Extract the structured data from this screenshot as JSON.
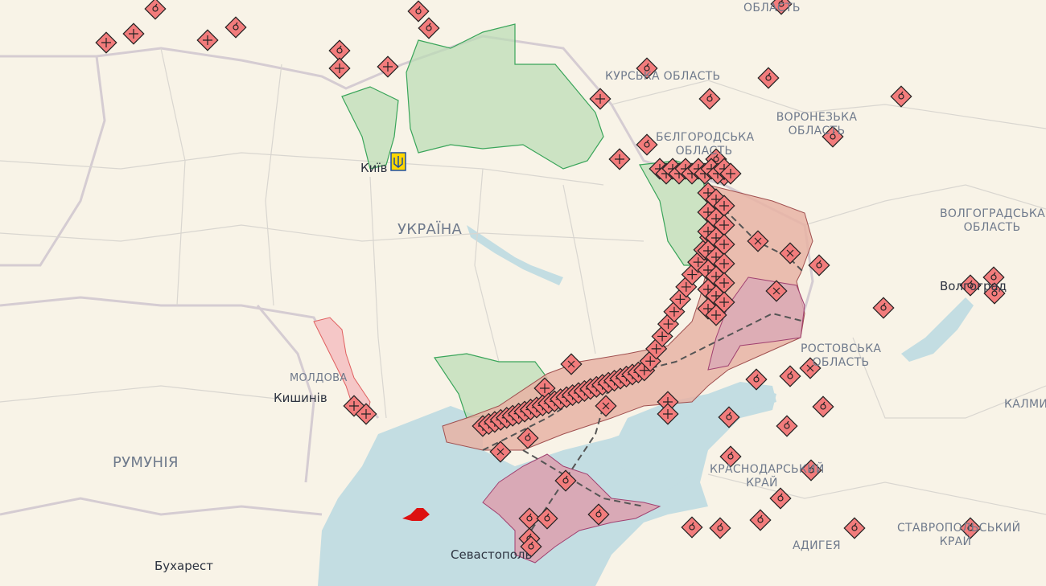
{
  "map": {
    "colors": {
      "land": "#f8f3e7",
      "sea": "#c3dde2",
      "occupied": "#e8b3a4",
      "occupied_crimea": "#d9a9b6",
      "liberated": "#b9dcb3",
      "marker": "#f27c7c",
      "border": "#c9c3c8",
      "transnistria": "#f5c7c7"
    },
    "region_labels": [
      {
        "name": "kursk",
        "text": "КУРСЬКА ОБЛАСТЬ"
      },
      {
        "name": "belgorod",
        "text": "БЄЛГОРОДСЬКА ОБЛАСТЬ"
      },
      {
        "name": "voronezh",
        "text": "ВОРОНЕЗЬКА ОБЛАСТЬ"
      },
      {
        "name": "volgograd",
        "text": "ВОЛГОГРАДСЬКА ОБЛАСТЬ"
      },
      {
        "name": "rostov",
        "text": "РОСТОВСЬКА ОБЛАСТЬ"
      },
      {
        "name": "krasnodar",
        "text": "КРАСНОДАРСЬКИЙ КРАЙ"
      },
      {
        "name": "adygea",
        "text": "АДИГЕЯ"
      },
      {
        "name": "stavropol",
        "text": "СТАВРОПОЛЬСЬКИЙ КРАЙ"
      },
      {
        "name": "kalmykia",
        "text": "КАЛМИ"
      },
      {
        "name": "top-oblast",
        "text": "ОБЛАСТЬ"
      },
      {
        "name": "moldova",
        "text": "МОЛДОВА"
      }
    ],
    "country_labels": [
      {
        "name": "ukraine",
        "text": "УКРАЇНА"
      },
      {
        "name": "romania",
        "text": "РУМУНІЯ"
      }
    ],
    "cities": [
      {
        "name": "kyiv",
        "text": "Київ"
      },
      {
        "name": "chisinau",
        "text": "Кишинів"
      },
      {
        "name": "volgograd",
        "text": "Волгоград"
      },
      {
        "name": "sevastopol",
        "text": "Севастополь"
      },
      {
        "name": "bucharest",
        "text": "Бухарест"
      }
    ],
    "marker_types": [
      "explosion-icon",
      "crossed-swords-icon",
      "grid-icon"
    ]
  }
}
